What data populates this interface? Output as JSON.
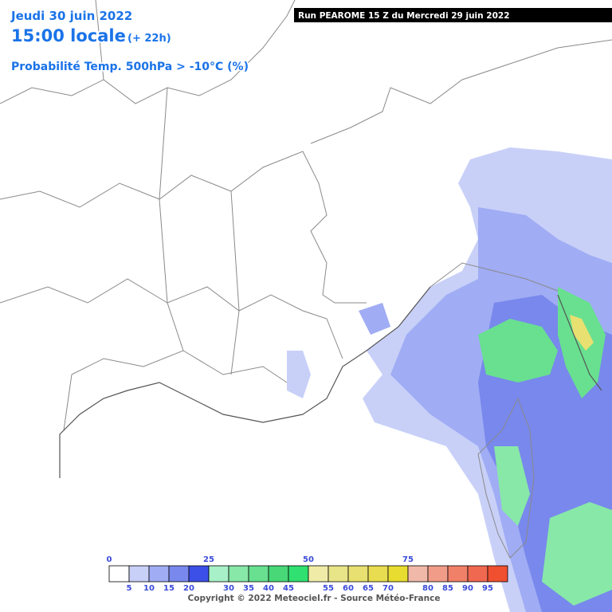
{
  "header": {
    "date": "Jeudi 30 juin 2022",
    "time": "15:00 locale",
    "lead": "(+ 22h)",
    "product": "Probabilité Temp. 500hPa > -10°C (%)"
  },
  "run": "Run PEAROME 15 Z du Mercredi 29 juin 2022",
  "legend": {
    "colors": [
      "#ffffff",
      "#c8d0f8",
      "#a0acf4",
      "#7888ec",
      "#3c50e8",
      "#a8f0c8",
      "#88e8a8",
      "#68e090",
      "#48d878",
      "#30e070",
      "#f0eca8",
      "#e8e488",
      "#e8e070",
      "#e8dc50",
      "#e8dc30",
      "#f0b8a8",
      "#f09c88",
      "#f08068",
      "#f06850",
      "#f05030"
    ],
    "top_labels": [
      "0",
      "25",
      "50",
      "75"
    ],
    "bottom_labels": [
      "5",
      "10",
      "15",
      "20",
      "30",
      "35",
      "40",
      "45",
      "55",
      "60",
      "65",
      "70",
      "80",
      "85",
      "90",
      "95"
    ]
  },
  "copyright": "Copyright © 2022 Meteociel.fr - Source Météo-France"
}
